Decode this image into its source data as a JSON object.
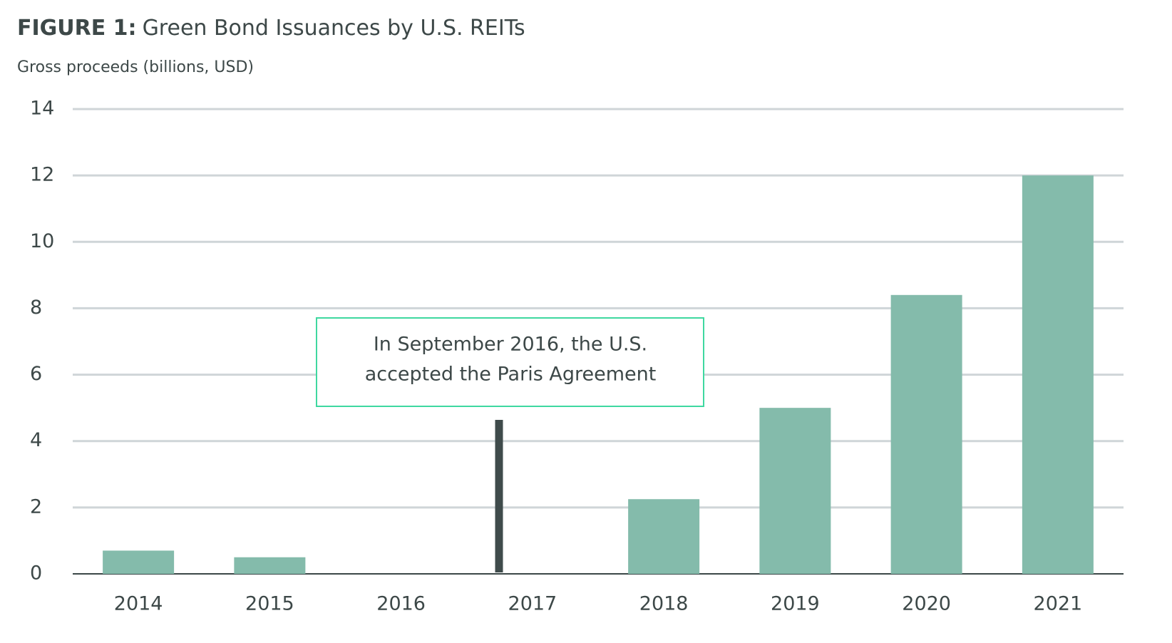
{
  "chart_data": {
    "type": "bar",
    "title_label": "FIGURE 1:",
    "title": "Green Bond Issuances by U.S. REITs",
    "y_label": "Gross proceeds (billions, USD)",
    "categories": [
      "2014",
      "2015",
      "2016",
      "2017",
      "2018",
      "2019",
      "2020",
      "2021"
    ],
    "values": [
      0.7,
      0.5,
      0,
      0,
      2.25,
      5.0,
      8.4,
      12.0
    ],
    "color": "#84bbab",
    "ylim": [
      0,
      14
    ],
    "yticks": [
      0,
      2,
      4,
      6,
      8,
      10,
      12,
      14
    ],
    "grid": true,
    "annotation": [
      "In September 2016, the U.S.",
      "accepted the Paris Agreement"
    ]
  }
}
